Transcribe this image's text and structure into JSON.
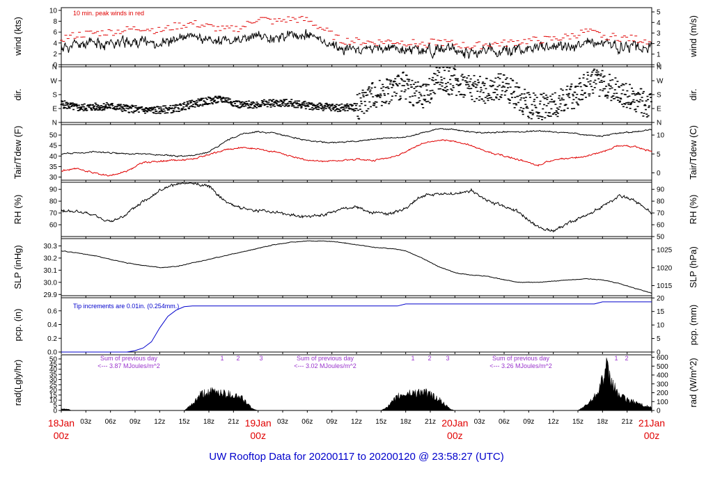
{
  "title": "UW Rooftop Data for 20200117  to  20200120 @ 23:58:27  (UTC)",
  "colors": {
    "black": "#000000",
    "red": "#e00000",
    "blue": "#0000cc",
    "purple": "#9933cc"
  },
  "chart_data": [
    {
      "name": "wind",
      "type": "line",
      "ylabel": "wind (kts)",
      "ylabel_right": "wind (m/s)",
      "yticks": [
        0,
        2,
        4,
        6,
        8,
        10
      ],
      "yticks_right": [
        0,
        1,
        2,
        3,
        4,
        5
      ],
      "ylim": [
        0,
        10.5
      ],
      "annotation": "10 min. peak winds in red",
      "x_hours": [
        0,
        2,
        4,
        6,
        8,
        10,
        12,
        14,
        16,
        18,
        20,
        22,
        24,
        26,
        28,
        30,
        32,
        34,
        36,
        38,
        40,
        42,
        44,
        46,
        48,
        50,
        52,
        54,
        56,
        58,
        60,
        62,
        64,
        66,
        68,
        70,
        72
      ],
      "series": [
        {
          "values": [
            3.2,
            3.6,
            3.9,
            4.0,
            4.1,
            4.3,
            4.0,
            4.6,
            5.0,
            4.6,
            4.3,
            4.4,
            5.3,
            5.1,
            5.4,
            5.4,
            4.4,
            3.0,
            2.9,
            2.8,
            3.0,
            2.7,
            2.6,
            2.8,
            2.6,
            2.3,
            2.5,
            2.6,
            2.8,
            3.0,
            3.1,
            3.4,
            3.9,
            3.6,
            3.3,
            3.1,
            3.0
          ]
        },
        {
          "values": [
            4.8,
            5.5,
            5.8,
            6.0,
            6.4,
            6.8,
            6.2,
            7.1,
            7.6,
            7.0,
            6.4,
            6.8,
            8.6,
            7.9,
            8.4,
            8.2,
            6.5,
            4.5,
            4.3,
            4.1,
            4.3,
            4.1,
            3.8,
            4.2,
            3.8,
            3.3,
            3.8,
            3.9,
            4.3,
            4.5,
            4.7,
            5.2,
            6.1,
            5.4,
            5.0,
            4.7,
            4.4
          ]
        }
      ]
    },
    {
      "name": "dir",
      "type": "scatter",
      "ylabel": "dir.",
      "ylabel_right": "dir.",
      "yticklabels": [
        "N",
        "E",
        "S",
        "W",
        "N"
      ],
      "yticks_deg": [
        0,
        90,
        180,
        270,
        360
      ],
      "ylim": [
        0,
        360
      ],
      "x_hours": [
        0,
        2,
        4,
        6,
        8,
        10,
        12,
        14,
        16,
        18,
        20,
        22,
        24,
        26,
        28,
        30,
        32,
        34,
        36,
        38,
        40,
        42,
        44,
        46,
        48,
        50,
        52,
        54,
        56,
        58,
        60,
        62,
        64,
        66,
        68,
        70,
        72
      ],
      "series": [
        {
          "values": [
            120,
            95,
            100,
            105,
            90,
            80,
            80,
            90,
            120,
            140,
            150,
            110,
            120,
            125,
            125,
            110,
            100,
            95,
            100,
            180,
            210,
            240,
            150,
            280,
            260,
            230,
            200,
            250,
            140,
            100,
            120,
            150,
            250,
            260,
            200,
            140,
            110
          ]
        }
      ]
    },
    {
      "name": "temp",
      "type": "line",
      "ylabel": "Tair/Tdew (F)",
      "ylabel_right": "Tair/Tdew (C)",
      "yticks": [
        30,
        35,
        40,
        45,
        50
      ],
      "yticks_right": [
        0,
        5,
        10
      ],
      "ylim": [
        28.5,
        55
      ],
      "x_hours": [
        0,
        2,
        4,
        6,
        8,
        10,
        12,
        14,
        16,
        18,
        20,
        22,
        24,
        26,
        28,
        30,
        32,
        34,
        36,
        38,
        40,
        42,
        44,
        46,
        48,
        50,
        52,
        54,
        56,
        58,
        60,
        62,
        64,
        66,
        68,
        70,
        72
      ],
      "series": [
        {
          "values": [
            41,
            41.5,
            42,
            41.5,
            41,
            41,
            40.5,
            40,
            40,
            42,
            47,
            50.5,
            51.5,
            51,
            49,
            47.5,
            46.5,
            46.5,
            47,
            48,
            48.5,
            49,
            51,
            53,
            52.5,
            51.5,
            51,
            51.5,
            51.5,
            52,
            51.5,
            51,
            50,
            49.5,
            51,
            51.5,
            52.5
          ]
        },
        {
          "values": [
            33,
            34,
            32,
            30.5,
            33,
            37,
            37.5,
            38,
            38.5,
            40.5,
            43,
            44,
            43.5,
            42,
            40,
            38,
            37.5,
            38,
            38.5,
            38,
            39,
            42,
            46,
            47.5,
            47,
            45,
            42,
            40,
            38,
            35.5,
            38,
            39,
            40,
            42,
            45,
            44.5,
            42
          ]
        }
      ]
    },
    {
      "name": "rh",
      "type": "line",
      "ylabel": "RH (%)",
      "ylabel_right": "RH (%)",
      "yticks": [
        60,
        70,
        80,
        90
      ],
      "yticks_right": [
        50,
        60,
        70,
        80,
        90
      ],
      "ylim": [
        50,
        96
      ],
      "x_hours": [
        0,
        2,
        4,
        6,
        8,
        10,
        12,
        14,
        16,
        18,
        20,
        22,
        24,
        26,
        28,
        30,
        32,
        34,
        36,
        38,
        40,
        42,
        44,
        46,
        48,
        50,
        52,
        54,
        56,
        58,
        60,
        62,
        64,
        66,
        68,
        70,
        72
      ],
      "series": [
        {
          "values": [
            72,
            71,
            68,
            62,
            69,
            80,
            89,
            94,
            95,
            93,
            80,
            74,
            72,
            71,
            68,
            67,
            68,
            73,
            75,
            70,
            69,
            74,
            85,
            86,
            86,
            89,
            80,
            76,
            70,
            58,
            55,
            62,
            68,
            75,
            85,
            80,
            70
          ]
        }
      ]
    },
    {
      "name": "slp",
      "type": "line",
      "ylabel": "SLP (inHg)",
      "ylabel_right": "SLP (hPa)",
      "yticks": [
        29.9,
        30.0,
        30.1,
        30.2,
        30.3
      ],
      "yticks_right": [
        1015,
        1020,
        1025
      ],
      "ylim": [
        29.89,
        30.36
      ],
      "x_hours": [
        0,
        2,
        4,
        6,
        8,
        10,
        12,
        14,
        16,
        18,
        20,
        22,
        24,
        26,
        28,
        30,
        32,
        34,
        36,
        38,
        40,
        42,
        44,
        46,
        48,
        50,
        52,
        54,
        56,
        58,
        60,
        62,
        64,
        66,
        68,
        70,
        72
      ],
      "series": [
        {
          "values": [
            30.26,
            30.24,
            30.22,
            30.19,
            30.16,
            30.14,
            30.12,
            30.13,
            30.16,
            30.19,
            30.22,
            30.25,
            30.28,
            30.31,
            30.33,
            30.34,
            30.34,
            30.33,
            30.31,
            30.29,
            30.28,
            30.26,
            30.2,
            30.13,
            30.08,
            30.06,
            30.05,
            30.02,
            30.0,
            30.0,
            30.01,
            30.02,
            30.03,
            30.02,
            29.99,
            29.95,
            29.91
          ]
        }
      ]
    },
    {
      "name": "pcp",
      "type": "line",
      "ylabel": "pcp. (in)",
      "ylabel_right": "pcp. (mm)",
      "yticks": [
        0.0,
        0.2,
        0.4,
        0.6
      ],
      "yticks_right": [
        0,
        5,
        10,
        15,
        20
      ],
      "ylim": [
        0,
        0.79
      ],
      "annotation": "Tip increments are 0.01in. (0.254mm.)",
      "x_hours": [
        0,
        8,
        9,
        10,
        11,
        12,
        13,
        14,
        15,
        16,
        24,
        36,
        41,
        42,
        48,
        60,
        65,
        66,
        72
      ],
      "series": [
        {
          "values": [
            0.0,
            0.0,
            0.02,
            0.06,
            0.15,
            0.35,
            0.52,
            0.61,
            0.66,
            0.67,
            0.67,
            0.67,
            0.67,
            0.7,
            0.7,
            0.7,
            0.7,
            0.73,
            0.73
          ]
        }
      ]
    },
    {
      "name": "rad",
      "type": "area",
      "ylabel": "rad(Lgly/hr)",
      "ylabel_right": "rad (W/m^2)",
      "yticks": [
        0,
        5,
        10,
        15,
        20,
        25,
        30,
        35,
        40,
        45,
        50
      ],
      "yticks_right": [
        0,
        100,
        200,
        300,
        400,
        500,
        600
      ],
      "ylim": [
        0,
        54
      ],
      "x_hours": [
        0,
        1,
        1.2,
        15,
        16,
        17,
        18,
        19,
        20,
        21,
        22,
        23,
        23.5,
        24,
        39,
        40,
        41,
        42,
        43,
        44,
        45,
        46,
        47,
        47.5,
        48,
        63,
        64,
        65,
        66,
        66.5,
        67,
        68,
        69,
        70,
        71,
        72
      ],
      "series": [
        {
          "values": [
            1.5,
            1,
            0,
            0,
            6,
            15,
            17,
            18,
            16,
            15,
            12,
            4,
            1,
            0,
            0,
            5,
            13,
            16,
            17,
            18,
            15,
            11,
            4,
            1,
            0,
            0,
            5,
            13,
            30,
            40,
            28,
            15,
            10,
            8,
            5,
            3
          ]
        }
      ],
      "daily_notes": [
        {
          "label": "Sum of previous day",
          "value": "<--- 3.87 MJoules/m^2",
          "peaks": [
            "1",
            "2",
            "3"
          ]
        },
        {
          "label": "Sum of previous day",
          "value": "<--- 3.02 MJoules/m^2",
          "peaks": [
            "1",
            "2",
            "3"
          ]
        },
        {
          "label": "Sum of previous day",
          "value": "<--- 3.26 MJoules/m^2",
          "peaks": [
            "1",
            "2"
          ]
        }
      ]
    }
  ],
  "x_axis": {
    "tick_labels": [
      "03z",
      "06z",
      "09z",
      "12z",
      "15z",
      "18z",
      "21z",
      "03z",
      "06z",
      "09z",
      "12z",
      "15z",
      "18z",
      "21z",
      "03z",
      "06z",
      "09z",
      "12z",
      "15z",
      "18z",
      "21z"
    ],
    "tick_hours": [
      3,
      6,
      9,
      12,
      15,
      18,
      21,
      27,
      30,
      33,
      36,
      39,
      42,
      45,
      51,
      54,
      57,
      60,
      63,
      66,
      69
    ],
    "day_labels": [
      {
        "date": "18Jan",
        "time": "00z",
        "hour": 0
      },
      {
        "date": "19Jan",
        "time": "00z",
        "hour": 24
      },
      {
        "date": "20Jan",
        "time": "00z",
        "hour": 48
      },
      {
        "date": "21Jan",
        "time": "00z",
        "hour": 72
      }
    ]
  }
}
